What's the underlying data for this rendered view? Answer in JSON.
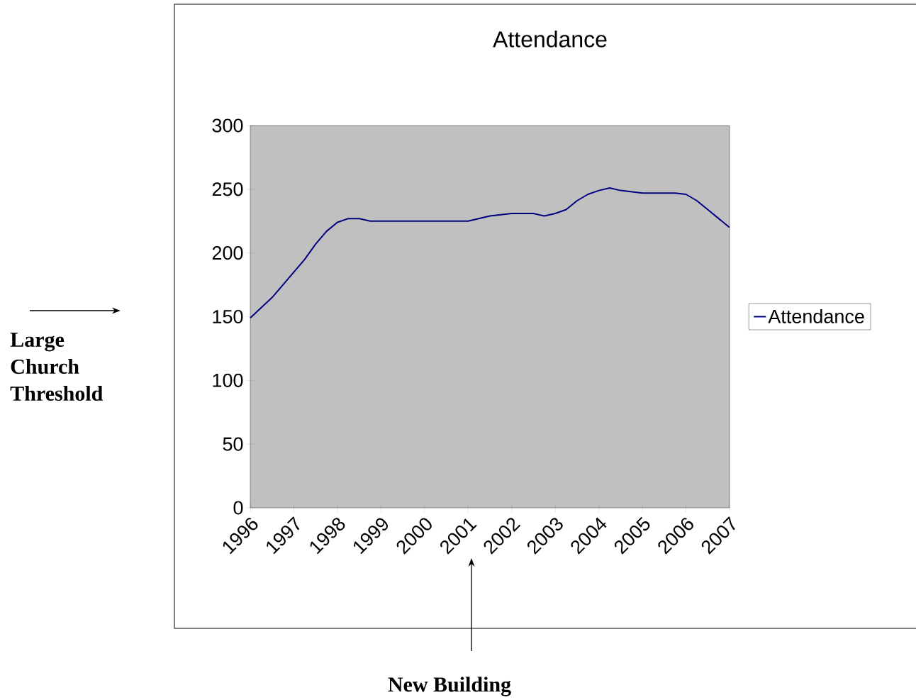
{
  "chart_data": {
    "type": "line",
    "title": "Attendance",
    "x": [
      1996,
      1996.5,
      1997.25,
      1997.5,
      1997.75,
      1998,
      1998.25,
      1998.5,
      1998.75,
      2001,
      2001.5,
      2002,
      2002.5,
      2002.75,
      2003,
      2003.25,
      2003.5,
      2003.75,
      2004,
      2004.25,
      2004.5,
      2005,
      2005.75,
      2006,
      2006.25,
      2006.5,
      2006.75,
      2007
    ],
    "series": [
      {
        "name": "Attendance",
        "color": "#000080",
        "values": [
          149,
          165,
          195,
          207,
          217,
          224,
          227,
          227,
          225,
          225,
          229,
          231,
          231,
          229,
          231,
          234,
          241,
          246,
          249,
          251,
          249,
          247,
          247,
          246,
          241,
          234,
          227,
          220
        ]
      }
    ],
    "xlim": [
      1996,
      2007
    ],
    "xticks": [
      1996,
      1997,
      1998,
      1999,
      2000,
      2001,
      2002,
      2003,
      2004,
      2005,
      2006,
      2007
    ],
    "ylim": [
      0,
      300
    ],
    "yticks": [
      0,
      50,
      100,
      150,
      200,
      250,
      300
    ],
    "legend": "right",
    "marker": "none",
    "line_style": "solid",
    "grid": false,
    "annotations": [
      "Large Church Threshold",
      "New Building"
    ]
  }
}
